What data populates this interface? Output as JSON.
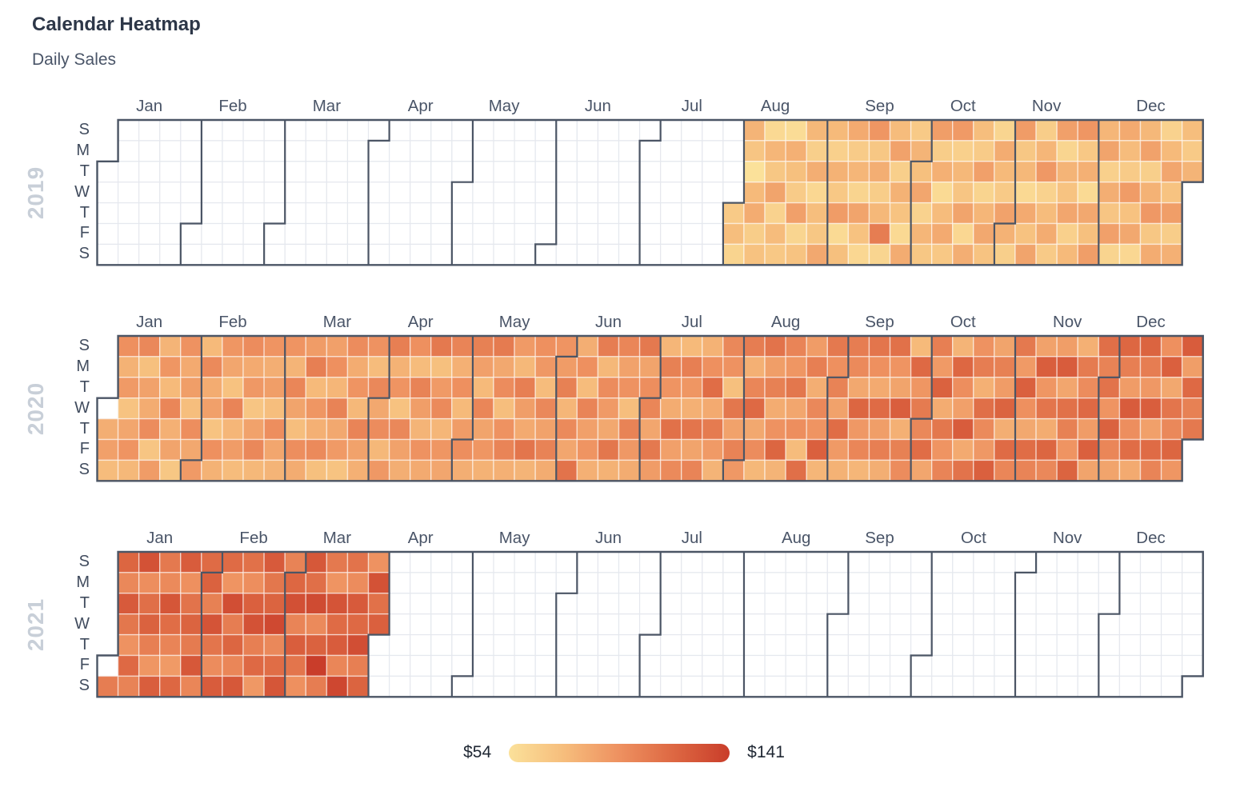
{
  "header": {
    "title": "Calendar Heatmap",
    "subtitle": "Daily Sales"
  },
  "axis": {
    "day_labels": [
      "S",
      "M",
      "T",
      "W",
      "T",
      "F",
      "S"
    ],
    "month_labels": [
      "Jan",
      "Feb",
      "Mar",
      "Apr",
      "May",
      "Jun",
      "Jul",
      "Aug",
      "Sep",
      "Oct",
      "Nov",
      "Dec"
    ],
    "year_labels": [
      "2019",
      "2020",
      "2021"
    ]
  },
  "legend": {
    "min_label": "$54",
    "max_label": "$141"
  },
  "colors": {
    "title": "#2d3748",
    "subtitle": "#4a5568",
    "month_label": "#4a5568",
    "day_label": "#414c5e",
    "year_label": "#c8cfd8",
    "boundary_line": "#4b5565",
    "grid_line": "#e5e8ee",
    "empty_cell": "#ffffff"
  },
  "chart_data": {
    "type": "heatmap",
    "subtype": "calendar",
    "title": "Calendar Heatmap",
    "subtitle": "Daily Sales",
    "legend": {
      "min": 54,
      "max": 141,
      "min_label": "$54",
      "max_label": "$141"
    },
    "color_scale_stops": [
      "#fbe19a",
      "#f6bd7c",
      "#ee9160",
      "#dd6742",
      "#c93d2a"
    ],
    "years": [
      {
        "year": 2019,
        "jan1_weekday": 2,
        "data_start": "2019-08-01",
        "data_end": "2019-12-31",
        "data_start_index": 212,
        "values": [
          68,
          75,
          62,
          80,
          71,
          54,
          77,
          84,
          66,
          73,
          59,
          79,
          70,
          88,
          63,
          76,
          69,
          57,
          82,
          74,
          67,
          90,
          61,
          72,
          78,
          65,
          83,
          60,
          75,
          70,
          86,
          77,
          64,
          81,
          69,
          92,
          58,
          74,
          85,
          67,
          79,
          62,
          88,
          73,
          60,
          95,
          70,
          83,
          66,
          78,
          108,
          61,
          76,
          89,
          65,
          81,
          72,
          59,
          84,
          68,
          80,
          74,
          87,
          63,
          79,
          70,
          91,
          66,
          82,
          58,
          76,
          85,
          69,
          93,
          64,
          78,
          71,
          88,
          60,
          83,
          75,
          67,
          90,
          62,
          79,
          86,
          72,
          61,
          84,
          77,
          68,
          89,
          81,
          65,
          92,
          70,
          78,
          59,
          85,
          73,
          88,
          66,
          79,
          94,
          63,
          76,
          84,
          68,
          90,
          61,
          80,
          72,
          87,
          64,
          77,
          95,
          69,
          82,
          58,
          86,
          74,
          91,
          79,
          88,
          64,
          83,
          71,
          90,
          62,
          85,
          76,
          67,
          92,
          73,
          86,
          60,
          78,
          89,
          65,
          81,
          94,
          70,
          84,
          63,
          77,
          87,
          72,
          91,
          66,
          82,
          75,
          68,
          80
        ]
      },
      {
        "year": 2020,
        "jan1_weekday": 3,
        "data_start": "2020-01-02",
        "data_end": "2020-12-31",
        "data_start_index": 1,
        "values": [
          83,
          90,
          76,
          98,
          81,
          93,
          72,
          87,
          96,
          78,
          102,
          74,
          89,
          84,
          100,
          71,
          92,
          80,
          95,
          77,
          103,
          82,
          88,
          70,
          97,
          85,
          91,
          75,
          99,
          86,
          93,
          77,
          101,
          84,
          90,
          72,
          98,
          81,
          95,
          87,
          73,
          104,
          79,
          92,
          76,
          100,
          85,
          94,
          71,
          89,
          102,
          78,
          96,
          83,
          91,
          75,
          99,
          87,
          80,
          96,
          80,
          103,
          88,
          75,
          99,
          84,
          92,
          107,
          77,
          95,
          82,
          101,
          74,
          90,
          98,
          79,
          105,
          86,
          93,
          72,
          100,
          84,
          96,
          78,
          104,
          89,
          82,
          97,
          76,
          102,
          86,
          100,
          78,
          94,
          107,
          81,
          96,
          73,
          102,
          89,
          83,
          98,
          76,
          105,
          91,
          80,
          97,
          85,
          110,
          74,
          93,
          101,
          79,
          95,
          87,
          104,
          82,
          98,
          77,
          92,
          99,
          83,
          106,
          90,
          77,
          103,
          88,
          95,
          81,
          109,
          86,
          100,
          75,
          97,
          104,
          82,
          93,
          78,
          107,
          91,
          85,
          112,
          80,
          98,
          94,
          76,
          102,
          89,
          105,
          84,
          96,
          92,
          106,
          79,
          101,
          87,
          113,
          83,
          98,
          76,
          104,
          90,
          96,
          82,
          108,
          78,
          100,
          93,
          86,
          111,
          81,
          103,
          89,
          97,
          75,
          105,
          94,
          84,
          110,
          88,
          99,
          103,
          87,
          110,
          92,
          79,
          106,
          96,
          84,
          114,
          90,
          101,
          77,
          107,
          95,
          82,
          112,
          88,
          104,
          81,
          98,
          116,
          85,
          109,
          93,
          80,
          102,
          97,
          74,
          111,
          89,
          105,
          94,
          108,
          82,
          103,
          118,
          86,
          100,
          78,
          113,
          91,
          106,
          84,
          97,
          120,
          80,
          104,
          95,
          111,
          87,
          99,
          76,
          115,
          92,
          107,
          83,
          102,
          96,
          123,
          79,
          110,
          98,
          105,
          89,
          116,
          93,
          81,
          108,
          101,
          86,
          120,
          94,
          103,
          79,
          112,
          98,
          85,
          117,
          91,
          107,
          83,
          114,
          96,
          88,
          124,
          82,
          106,
          100,
          77,
          118,
          95,
          109,
          102,
          116,
          87,
          107,
          93,
          122,
          84,
          111,
          96,
          104,
          80,
          119,
          99,
          90,
          125,
          85,
          113,
          97,
          108,
          82,
          115,
          101,
          94,
          123,
          88,
          106,
          92,
          121,
          83,
          117,
          103,
          110,
          93,
          123,
          98,
          86,
          116,
          104,
          89,
          124,
          95,
          112,
          84,
          120,
          102,
          91,
          125,
          87,
          114,
          106,
          96,
          121,
          82,
          109,
          100,
          118,
          92,
          123,
          88,
          115,
          105,
          113,
          96,
          122,
          103,
          88,
          119,
          107,
          92,
          125,
          99,
          116,
          85,
          121,
          108,
          94,
          124,
          90,
          117,
          104,
          98,
          123,
          86,
          112,
          102,
          120,
          95,
          125,
          91,
          118,
          106,
          110
        ]
      },
      {
        "year": 2021,
        "jan1_weekday": 5,
        "data_start": "2021-01-02",
        "data_end": "2021-03-31",
        "data_start_index": 1,
        "values": [
          108,
          120,
          102,
          126,
          111,
          97,
          118,
          105,
          130,
          99,
          115,
          122,
          107,
          95,
          124,
          110,
          101,
          128,
          116,
          104,
          93,
          119,
          125,
          98,
          113,
          121,
          109,
          127,
          103,
          117,
          122,
          106,
          129,
          112,
          100,
          125,
          117,
          96,
          132,
          108,
          120,
          103,
          127,
          114,
          99,
          123,
          130,
          107,
          118,
          94,
          126,
          111,
          121,
          135,
          102,
          116,
          128,
          105,
          119,
          131,
          104,
          124,
          112,
          98,
          127,
          115,
          134,
          101,
          122,
          141,
          108,
          110,
          96,
          129,
          117,
          125,
          103,
          136,
          113,
          100,
          126,
          118,
          132,
          107,
          121,
          97,
          130,
          114,
          123
        ]
      }
    ]
  }
}
